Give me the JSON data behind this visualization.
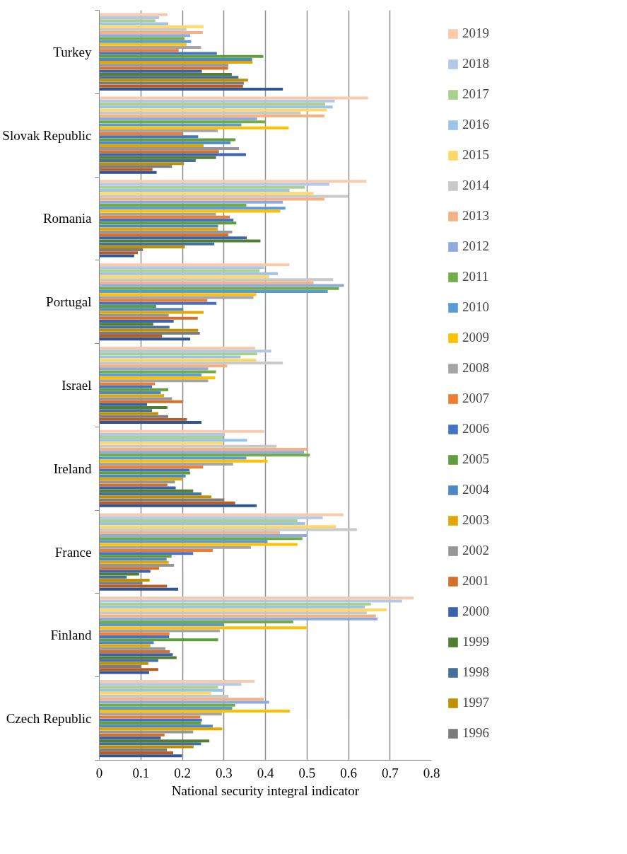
{
  "chart_data": {
    "type": "bar",
    "orientation": "horizontal",
    "xlabel": "National security integral indicator",
    "categories": [
      "Turkey",
      "Slovak Republic",
      "Romania",
      "Portugal",
      "Israel",
      "Ireland",
      "France",
      "Finland",
      "Czech Republic"
    ],
    "xlim": [
      0,
      0.8
    ],
    "xticks": [
      0,
      0.1,
      0.2,
      0.3,
      0.4,
      0.5,
      0.6,
      0.7,
      0.8
    ],
    "grid": "x",
    "legend": "right",
    "series": [
      {
        "name": "2019",
        "color": "#f8cbad",
        "values": [
          0.164,
          0.647,
          0.643,
          0.458,
          0.375,
          0.397,
          0.588,
          0.757,
          0.374
        ]
      },
      {
        "name": "2018",
        "color": "#b4c7e7",
        "values": [
          0.144,
          0.567,
          0.554,
          0.397,
          0.414,
          0.302,
          0.538,
          0.729,
          0.342
        ]
      },
      {
        "name": "2017",
        "color": "#a9d18e",
        "values": [
          0.135,
          0.544,
          0.495,
          0.386,
          0.38,
          0.299,
          0.477,
          0.654,
          0.286
        ]
      },
      {
        "name": "2016",
        "color": "#9dc3e6",
        "values": [
          0.166,
          0.562,
          0.458,
          0.43,
          0.34,
          0.356,
          0.495,
          0.639,
          0.3
        ]
      },
      {
        "name": "2015",
        "color": "#ffd966",
        "values": [
          0.251,
          0.548,
          0.516,
          0.409,
          0.378,
          0.298,
          0.57,
          0.692,
          0.269
        ]
      },
      {
        "name": "2014",
        "color": "#c9c9c9",
        "values": [
          0.21,
          0.485,
          0.6,
          0.563,
          0.442,
          0.427,
          0.62,
          0.644,
          0.311
        ]
      },
      {
        "name": "2013",
        "color": "#f4b183",
        "values": [
          0.249,
          0.542,
          0.542,
          0.516,
          0.308,
          0.503,
          0.435,
          0.666,
          0.396
        ]
      },
      {
        "name": "2012",
        "color": "#8faadc",
        "values": [
          0.219,
          0.38,
          0.442,
          0.589,
          0.262,
          0.493,
          0.501,
          0.67,
          0.409
        ]
      },
      {
        "name": "2011",
        "color": "#70ad47",
        "values": [
          0.205,
          0.401,
          0.354,
          0.577,
          0.281,
          0.507,
          0.489,
          0.467,
          0.327
        ]
      },
      {
        "name": "2010",
        "color": "#5b9bd5",
        "values": [
          0.221,
          0.342,
          0.448,
          0.55,
          0.246,
          0.354,
          0.405,
          0.3,
          0.32
        ]
      },
      {
        "name": "2009",
        "color": "#ffc000",
        "values": [
          0.21,
          0.456,
          0.436,
          0.378,
          0.279,
          0.405,
          0.477,
          0.5,
          0.459
        ]
      },
      {
        "name": "2008",
        "color": "#a5a5a5",
        "values": [
          0.245,
          0.285,
          0.281,
          0.371,
          0.262,
          0.322,
          0.365,
          0.29,
          0.295
        ]
      },
      {
        "name": "2007",
        "color": "#ed7d31",
        "values": [
          0.191,
          0.201,
          0.314,
          0.26,
          0.134,
          0.25,
          0.273,
          0.169,
          0.243
        ]
      },
      {
        "name": "2006",
        "color": "#4472c4",
        "values": [
          0.283,
          0.238,
          0.323,
          0.282,
          0.127,
          0.217,
          0.226,
          0.168,
          0.247
        ]
      },
      {
        "name": "2005",
        "color": "#5f9e3a",
        "values": [
          0.395,
          0.328,
          0.33,
          0.137,
          0.166,
          0.219,
          0.174,
          0.286,
          0.245
        ]
      },
      {
        "name": "2004",
        "color": "#4d88c4",
        "values": [
          0.368,
          0.316,
          0.286,
          0.202,
          0.148,
          0.208,
          0.162,
          0.131,
          0.273
        ]
      },
      {
        "name": "2003",
        "color": "#dfa700",
        "values": [
          0.369,
          0.251,
          0.285,
          0.251,
          0.156,
          0.201,
          0.167,
          0.123,
          0.296
        ]
      },
      {
        "name": "2002",
        "color": "#969696",
        "values": [
          0.311,
          0.336,
          0.32,
          0.167,
          0.175,
          0.182,
          0.18,
          0.159,
          0.226
        ]
      },
      {
        "name": "2001",
        "color": "#d5702a",
        "values": [
          0.31,
          0.288,
          0.311,
          0.237,
          0.2,
          0.164,
          0.144,
          0.17,
          0.157
        ]
      },
      {
        "name": "2000",
        "color": "#3a62ad",
        "values": [
          0.247,
          0.353,
          0.355,
          0.179,
          0.115,
          0.184,
          0.123,
          0.177,
          0.148
        ]
      },
      {
        "name": "1999",
        "color": "#507e32",
        "values": [
          0.319,
          0.281,
          0.388,
          0.13,
          0.164,
          0.226,
          0.096,
          0.186,
          0.265
        ]
      },
      {
        "name": "1998",
        "color": "#41719c",
        "values": [
          0.335,
          0.232,
          0.277,
          0.169,
          0.127,
          0.246,
          0.066,
          0.142,
          0.245
        ]
      },
      {
        "name": "1997",
        "color": "#bf9000",
        "values": [
          0.358,
          0.204,
          0.206,
          0.238,
          0.142,
          0.27,
          0.121,
          0.118,
          0.227
        ]
      },
      {
        "name": "1996",
        "color": "#7c7c7c",
        "values": [
          0.348,
          0.175,
          0.105,
          0.242,
          0.166,
          0.301,
          0.104,
          0.1,
          0.163
        ]
      },
      {
        "color": "#b85c22",
        "values": [
          0.346,
          0.128,
          0.093,
          0.151,
          0.211,
          0.327,
          0.163,
          0.142,
          0.178
        ]
      },
      {
        "color": "#2f5597",
        "values": [
          0.442,
          0.138,
          0.084,
          0.219,
          0.246,
          0.379,
          0.19,
          0.12,
          0.199
        ]
      }
    ]
  }
}
